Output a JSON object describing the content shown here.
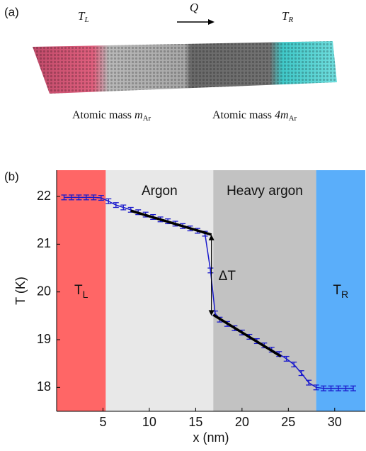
{
  "panel_a": {
    "label": "(a)",
    "left_temp": {
      "text": "T",
      "sub": "L"
    },
    "flux": "Q",
    "right_temp": {
      "text": "T",
      "sub": "R"
    },
    "mass_left": {
      "text": "Atomic mass",
      "math": "m",
      "sub": "Ar"
    },
    "mass_right": {
      "text": "Atomic mass",
      "math": "4m",
      "sub": "Ar"
    }
  },
  "chart_data": {
    "type": "line",
    "panel_label": "(b)",
    "x_label": "x (nm)",
    "y_label": "T (K)",
    "xlim": [
      0,
      33.3
    ],
    "ylim": [
      17.5,
      22.55
    ],
    "xticks": [
      5,
      10,
      15,
      20,
      25,
      30
    ],
    "yticks": [
      18,
      19,
      20,
      21,
      22
    ],
    "regions": [
      {
        "x": [
          0,
          5.3
        ],
        "color": "#ff6666",
        "label": "T",
        "label_sub": "L"
      },
      {
        "x": [
          5.3,
          16.9
        ],
        "color": "#e8e8e8",
        "label": "Argon"
      },
      {
        "x": [
          16.9,
          28.0
        ],
        "color": "#c2c2c2",
        "label": "Heavy argon"
      },
      {
        "x": [
          28.0,
          33.3
        ],
        "color": "#5aaefa",
        "label": "T",
        "label_sub": "R"
      }
    ],
    "series": [
      {
        "color": "#1a1acc",
        "error": 0.05,
        "x": [
          0.8,
          1.6,
          2.4,
          3.2,
          4.0,
          4.8,
          5.6,
          6.4,
          7.2,
          8.0,
          8.8,
          9.6,
          10.4,
          11.2,
          12.0,
          12.8,
          13.6,
          14.4,
          15.2,
          16.0,
          16.6,
          17.1,
          17.6,
          18.4,
          19.2,
          20.0,
          20.8,
          21.6,
          22.4,
          23.2,
          24.0,
          24.8,
          25.6,
          26.4,
          27.2,
          28.0,
          28.8,
          29.6,
          30.4,
          31.2,
          32.0
        ],
        "values": [
          21.98,
          21.98,
          21.98,
          21.98,
          21.98,
          21.97,
          21.9,
          21.82,
          21.77,
          21.72,
          21.67,
          21.62,
          21.57,
          21.52,
          21.48,
          21.43,
          21.38,
          21.33,
          21.28,
          21.22,
          20.45,
          19.55,
          19.42,
          19.33,
          19.24,
          19.15,
          19.06,
          18.97,
          18.88,
          18.79,
          18.7,
          18.6,
          18.48,
          18.3,
          18.1,
          18.0,
          17.98,
          17.98,
          17.98,
          17.98,
          17.98
        ]
      }
    ],
    "fit_lines": [
      {
        "color": "#000000",
        "x": [
          8.0,
          16.7
        ],
        "values": [
          21.7,
          21.2
        ]
      },
      {
        "color": "#000000",
        "x": [
          16.9,
          24.2
        ],
        "values": [
          19.52,
          18.65
        ]
      }
    ],
    "jump_arrow": {
      "x": 16.7,
      "values": [
        21.2,
        19.5
      ],
      "label": "ΔT"
    }
  }
}
